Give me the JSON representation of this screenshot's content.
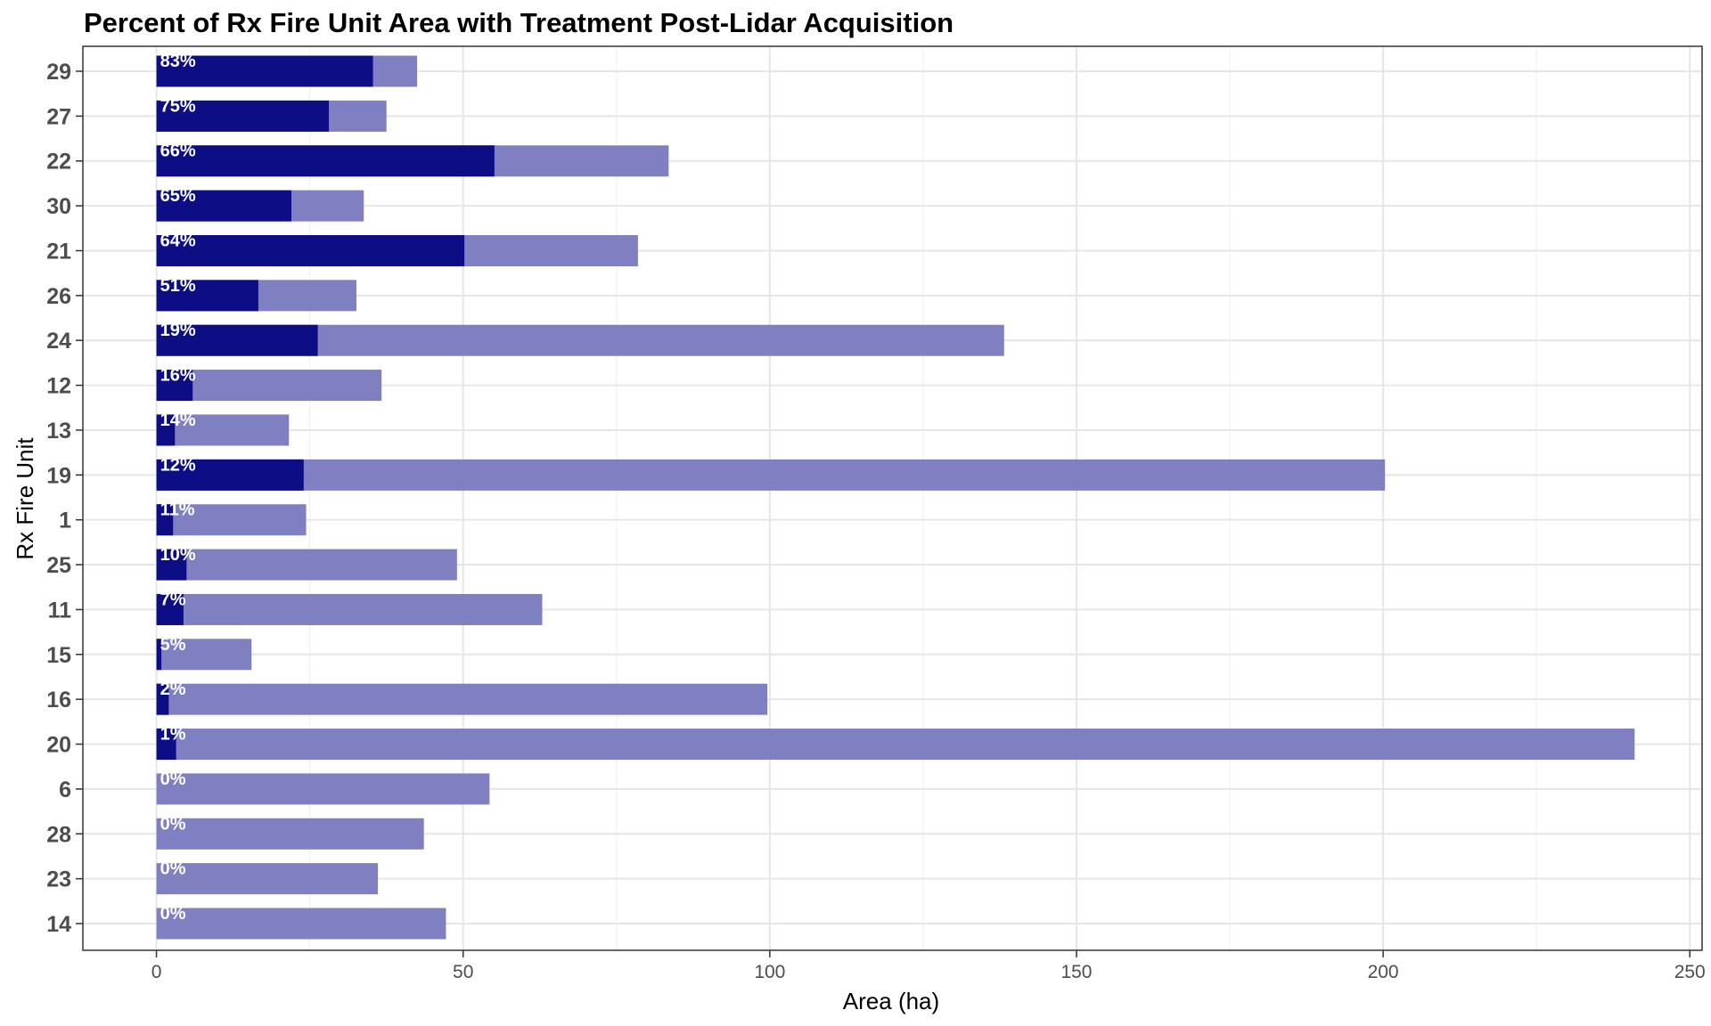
{
  "chart_data": {
    "type": "bar",
    "orientation": "horizontal",
    "title": "Percent of Rx Fire Unit Area with Treatment Post-Lidar Acquisition",
    "xlabel": "Area (ha)",
    "ylabel": "Rx Fire Unit",
    "xlim": [
      -12,
      252
    ],
    "x_ticks": [
      "0",
      "50",
      "100",
      "150",
      "200",
      "250"
    ],
    "grid": true,
    "colors": {
      "treated": "#0d0d85",
      "total": "#7f7fc2"
    },
    "categories": [
      "29",
      "27",
      "22",
      "30",
      "21",
      "26",
      "24",
      "12",
      "13",
      "19",
      "1",
      "25",
      "11",
      "15",
      "16",
      "20",
      "6",
      "28",
      "23",
      "14"
    ],
    "series": [
      {
        "values": [
          42.5,
          37.5,
          83.5,
          33.8,
          78.5,
          32.6,
          138.2,
          36.7,
          21.6,
          200.3,
          24.4,
          49.0,
          62.9,
          15.5,
          99.6,
          241.0,
          54.3,
          43.6,
          36.1,
          47.2
        ]
      },
      {
        "values": [
          35.3,
          28.1,
          55.1,
          22.0,
          50.2,
          16.6,
          26.3,
          5.9,
          3.0,
          24.0,
          2.7,
          4.9,
          4.4,
          0.8,
          2.0,
          3.2,
          0,
          0,
          0,
          0
        ]
      }
    ],
    "labels": [
      "83%",
      "75%",
      "66%",
      "65%",
      "64%",
      "51%",
      "19%",
      "16%",
      "14%",
      "12%",
      "11%",
      "10%",
      "7%",
      "5%",
      "2%",
      "1%",
      "0%",
      "0%",
      "0%",
      "0%"
    ]
  }
}
